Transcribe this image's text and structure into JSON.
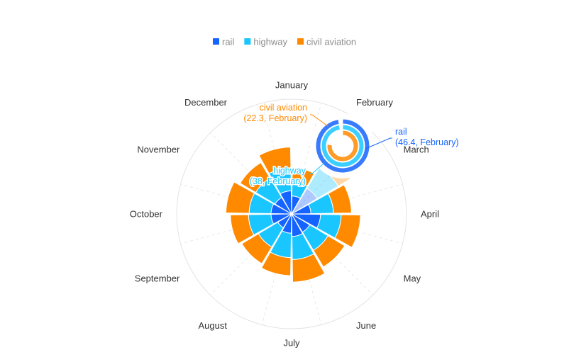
{
  "chart_data": {
    "type": "rose",
    "title": "",
    "categories": [
      "January",
      "February",
      "March",
      "April",
      "May",
      "June",
      "July",
      "August",
      "September",
      "October",
      "November",
      "December"
    ],
    "series": [
      {
        "name": "rail",
        "color": "#1664FF",
        "values": [
          28,
          46.4,
          30,
          45,
          33,
          35,
          30,
          25,
          32,
          32,
          30,
          36
        ]
      },
      {
        "name": "highway",
        "color": "#1AC6FF",
        "values": [
          22,
          38,
          35,
          32,
          33,
          36,
          38,
          35,
          35,
          34,
          35,
          36
        ]
      },
      {
        "name": "civil aviation",
        "color": "#FF8A00",
        "values": [
          22,
          22.3,
          28,
          30,
          30,
          35,
          28,
          30,
          28,
          36,
          28,
          32
        ]
      }
    ],
    "stacked": true,
    "legend_position": "top-center",
    "highlighted_category": "February",
    "annotations": [
      {
        "series": "rail",
        "line1": "rail",
        "line2": "(46.4, February)"
      },
      {
        "series": "highway",
        "line1": "highway",
        "line2": "(38, February)"
      },
      {
        "series": "civil aviation",
        "line1": "civil aviation",
        "line2": "(22.3, February)"
      }
    ]
  }
}
